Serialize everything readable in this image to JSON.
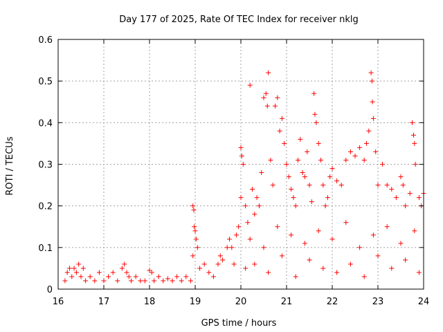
{
  "chart_data": {
    "type": "scatter",
    "title": "Day 177 of 2025, Rate Of TEC Index for receiver nklg",
    "xlabel": "GPS time / hours",
    "ylabel": "ROTI / TECUs",
    "xlim": [
      16,
      24
    ],
    "ylim": [
      0,
      0.6
    ],
    "x_ticks": [
      "16",
      "17",
      "18",
      "19",
      "20",
      "21",
      "22",
      "23",
      "24"
    ],
    "y_ticks": [
      "0",
      "0.1",
      "0.2",
      "0.3",
      "0.4",
      "0.5",
      "0.6"
    ],
    "grid": true,
    "marker": "plus",
    "color": "#ff0000",
    "series": [
      {
        "name": "ROTI",
        "points": [
          [
            16.15,
            0.02
          ],
          [
            16.2,
            0.04
          ],
          [
            16.25,
            0.05
          ],
          [
            16.3,
            0.03
          ],
          [
            16.35,
            0.05
          ],
          [
            16.4,
            0.04
          ],
          [
            16.45,
            0.06
          ],
          [
            16.5,
            0.03
          ],
          [
            16.55,
            0.05
          ],
          [
            16.6,
            0.02
          ],
          [
            16.7,
            0.03
          ],
          [
            16.8,
            0.02
          ],
          [
            16.9,
            0.04
          ],
          [
            17.0,
            0.02
          ],
          [
            17.1,
            0.03
          ],
          [
            17.2,
            0.04
          ],
          [
            17.3,
            0.02
          ],
          [
            17.4,
            0.05
          ],
          [
            17.45,
            0.06
          ],
          [
            17.5,
            0.04
          ],
          [
            17.55,
            0.03
          ],
          [
            17.6,
            0.02
          ],
          [
            17.7,
            0.03
          ],
          [
            17.8,
            0.02
          ],
          [
            17.9,
            0.02
          ],
          [
            18.0,
            0.045
          ],
          [
            18.05,
            0.04
          ],
          [
            18.1,
            0.02
          ],
          [
            18.2,
            0.03
          ],
          [
            18.3,
            0.02
          ],
          [
            18.4,
            0.025
          ],
          [
            18.5,
            0.02
          ],
          [
            18.6,
            0.03
          ],
          [
            18.7,
            0.02
          ],
          [
            18.8,
            0.03
          ],
          [
            18.9,
            0.02
          ],
          [
            18.95,
            0.2
          ],
          [
            18.97,
            0.19
          ],
          [
            18.98,
            0.15
          ],
          [
            19.0,
            0.14
          ],
          [
            19.02,
            0.12
          ],
          [
            19.05,
            0.1
          ],
          [
            18.95,
            0.08
          ],
          [
            19.1,
            0.05
          ],
          [
            19.2,
            0.06
          ],
          [
            19.3,
            0.04
          ],
          [
            19.4,
            0.03
          ],
          [
            19.5,
            0.06
          ],
          [
            19.55,
            0.08
          ],
          [
            19.6,
            0.07
          ],
          [
            19.7,
            0.1
          ],
          [
            19.75,
            0.12
          ],
          [
            19.8,
            0.1
          ],
          [
            19.85,
            0.06
          ],
          [
            19.9,
            0.13
          ],
          [
            19.95,
            0.15
          ],
          [
            20.0,
            0.34
          ],
          [
            20.02,
            0.32
          ],
          [
            20.05,
            0.3
          ],
          [
            20.0,
            0.22
          ],
          [
            20.1,
            0.2
          ],
          [
            20.15,
            0.16
          ],
          [
            20.2,
            0.49
          ],
          [
            20.25,
            0.24
          ],
          [
            20.3,
            0.18
          ],
          [
            20.35,
            0.22
          ],
          [
            20.4,
            0.2
          ],
          [
            20.45,
            0.28
          ],
          [
            20.5,
            0.46
          ],
          [
            20.55,
            0.47
          ],
          [
            20.58,
            0.44
          ],
          [
            20.6,
            0.52
          ],
          [
            20.65,
            0.31
          ],
          [
            20.7,
            0.25
          ],
          [
            20.75,
            0.44
          ],
          [
            20.8,
            0.46
          ],
          [
            20.85,
            0.38
          ],
          [
            20.9,
            0.41
          ],
          [
            20.95,
            0.35
          ],
          [
            21.0,
            0.3
          ],
          [
            21.05,
            0.27
          ],
          [
            21.1,
            0.24
          ],
          [
            21.15,
            0.22
          ],
          [
            21.2,
            0.2
          ],
          [
            21.25,
            0.31
          ],
          [
            21.3,
            0.36
          ],
          [
            21.35,
            0.28
          ],
          [
            21.4,
            0.27
          ],
          [
            21.45,
            0.33
          ],
          [
            21.5,
            0.25
          ],
          [
            21.55,
            0.21
          ],
          [
            21.6,
            0.47
          ],
          [
            21.62,
            0.42
          ],
          [
            21.65,
            0.4
          ],
          [
            21.7,
            0.35
          ],
          [
            21.75,
            0.31
          ],
          [
            21.8,
            0.25
          ],
          [
            21.85,
            0.2
          ],
          [
            21.9,
            0.22
          ],
          [
            21.95,
            0.27
          ],
          [
            22.0,
            0.29
          ],
          [
            22.1,
            0.26
          ],
          [
            22.2,
            0.25
          ],
          [
            22.3,
            0.31
          ],
          [
            22.4,
            0.33
          ],
          [
            22.5,
            0.32
          ],
          [
            22.6,
            0.34
          ],
          [
            22.7,
            0.31
          ],
          [
            22.75,
            0.35
          ],
          [
            22.8,
            0.38
          ],
          [
            22.85,
            0.52
          ],
          [
            22.87,
            0.5
          ],
          [
            22.88,
            0.45
          ],
          [
            22.9,
            0.41
          ],
          [
            22.95,
            0.33
          ],
          [
            23.0,
            0.25
          ],
          [
            23.1,
            0.3
          ],
          [
            23.2,
            0.25
          ],
          [
            23.3,
            0.24
          ],
          [
            23.4,
            0.22
          ],
          [
            23.5,
            0.27
          ],
          [
            23.55,
            0.25
          ],
          [
            23.6,
            0.2
          ],
          [
            23.7,
            0.23
          ],
          [
            23.75,
            0.4
          ],
          [
            23.78,
            0.37
          ],
          [
            23.8,
            0.35
          ],
          [
            23.82,
            0.3
          ],
          [
            23.9,
            0.22
          ],
          [
            23.95,
            0.2
          ],
          [
            24.0,
            0.23
          ],
          [
            20.1,
            0.05
          ],
          [
            20.3,
            0.06
          ],
          [
            20.6,
            0.04
          ],
          [
            20.9,
            0.08
          ],
          [
            21.2,
            0.03
          ],
          [
            21.5,
            0.07
          ],
          [
            21.8,
            0.05
          ],
          [
            22.1,
            0.04
          ],
          [
            22.4,
            0.06
          ],
          [
            22.7,
            0.03
          ],
          [
            23.0,
            0.08
          ],
          [
            23.3,
            0.05
          ],
          [
            23.6,
            0.07
          ],
          [
            23.9,
            0.04
          ],
          [
            20.2,
            0.12
          ],
          [
            20.5,
            0.1
          ],
          [
            20.8,
            0.15
          ],
          [
            21.1,
            0.13
          ],
          [
            21.4,
            0.11
          ],
          [
            21.7,
            0.14
          ],
          [
            22.0,
            0.12
          ],
          [
            22.3,
            0.16
          ],
          [
            22.6,
            0.1
          ],
          [
            22.9,
            0.13
          ],
          [
            23.2,
            0.15
          ],
          [
            23.5,
            0.11
          ],
          [
            23.8,
            0.14
          ]
        ]
      }
    ]
  }
}
